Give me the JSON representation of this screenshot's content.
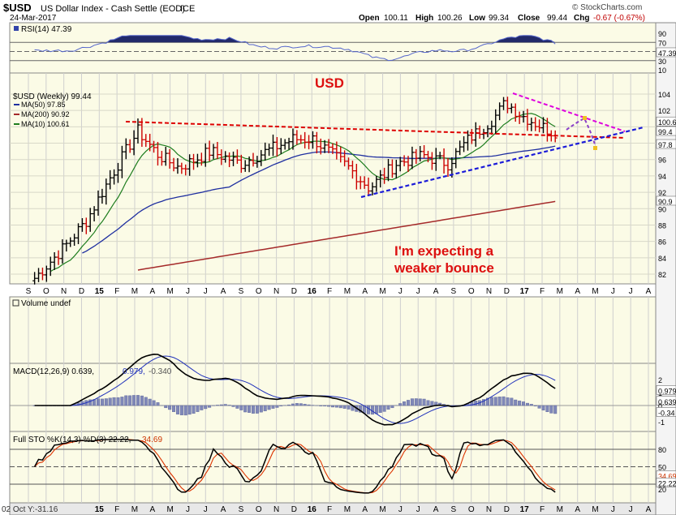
{
  "header": {
    "symbol": "$USD",
    "name": "US Dollar Index - Cash Settle (EOD)",
    "exchange": "ICE",
    "date": "24-Mar-2017",
    "brand": "© StockCharts.com",
    "ohlc": {
      "open_label": "Open",
      "open": "100.11",
      "high_label": "High",
      "high": "100.26",
      "low_label": "Low",
      "low": "99.34",
      "close_label": "Close",
      "close": "99.44",
      "chg_label": "Chg",
      "chg": "-0.67 (-0.67%)"
    }
  },
  "rsi_panel": {
    "legend": "RSI(14) 47.39",
    "ticks": [
      "90",
      "70",
      "47.39",
      "30",
      "10"
    ],
    "ref_levels": [
      70,
      30
    ],
    "current": 47.39
  },
  "price_panel": {
    "legend": "$USD (Weekly) 99.44",
    "ma50_legend": "MA(50) 97.85",
    "ma200_legend": "MA(200) 90.92",
    "ma10_legend": "MA(10) 100.61",
    "ticks": [
      "104",
      "102",
      "100",
      "98",
      "96",
      "94",
      "92",
      "90",
      "88",
      "86",
      "84",
      "82"
    ],
    "last_labels": [
      "100.6",
      "99.4",
      "97.8",
      "90.9"
    ],
    "annotation_title": "USD",
    "annotation_line1": "I'm expecting a",
    "annotation_line2": "weaker bounce",
    "colors": {
      "up": "#000000",
      "down": "#cc0000",
      "ma50": "#1f2fa0",
      "ma200": "#a52a2a",
      "ma10": "#1e7d1e",
      "trend_red": "#dd0000",
      "trend_blue": "#1c1cd8",
      "trend_magenta": "#dd00dd",
      "projection": "#8a3fc8",
      "marker": "#f0c020"
    }
  },
  "x_axis": {
    "labels": [
      "S",
      "O",
      "N",
      "D",
      "15",
      "F",
      "M",
      "A",
      "M",
      "J",
      "J",
      "A",
      "S",
      "O",
      "N",
      "D",
      "16",
      "F",
      "M",
      "A",
      "M",
      "J",
      "J",
      "A",
      "S",
      "O",
      "N",
      "D",
      "17",
      "F",
      "M",
      "A",
      "M",
      "J",
      "J",
      "A"
    ],
    "bottom_labels": [
      "15",
      "F",
      "M",
      "A",
      "M",
      "J",
      "J",
      "A",
      "S",
      "O",
      "N",
      "D",
      "16",
      "F",
      "M",
      "A",
      "M",
      "J",
      "J",
      "A",
      "S",
      "O",
      "N",
      "D",
      "17",
      "F",
      "M",
      "A",
      "M",
      "J",
      "J",
      "A"
    ]
  },
  "volume_panel": {
    "legend": "Volume undef"
  },
  "macd_panel": {
    "legend_main": "MACD(12,26,9) 0.639,",
    "legend_signal": "0.979,",
    "legend_hist": "-0.340",
    "ticks": [
      "2",
      "1",
      "0.979",
      "0.639",
      "0",
      "-0.34",
      "-1"
    ]
  },
  "sto_panel": {
    "legend_main": "Full STO %K(14,3) %D(3) 22.22,",
    "legend_d": "34.69",
    "ticks": [
      "80",
      "50",
      "34.69",
      "22.22",
      "20"
    ],
    "ref_levels": [
      80,
      50,
      20
    ]
  },
  "footer": {
    "note": "02 Oct Y:-31.16"
  },
  "chart_data": {
    "type": "line",
    "title": "$USD US Dollar Index - Cash Settle (EOD) ICE",
    "timeframe": "Weekly",
    "date_range": [
      "Sep 2014",
      "Mar 2017"
    ],
    "ylim": [
      81,
      105
    ],
    "series": [
      {
        "name": "$USD (Weekly)",
        "sampled_closes": [
          [
            2014.7,
            81.5
          ],
          [
            2014.85,
            85.5
          ],
          [
            2014.95,
            88.5
          ],
          [
            2015.07,
            94.0
          ],
          [
            2015.2,
            99.5
          ],
          [
            2015.3,
            96.5
          ],
          [
            2015.4,
            95.0
          ],
          [
            2015.55,
            97.0
          ],
          [
            2015.7,
            95.5
          ],
          [
            2015.82,
            97.0
          ],
          [
            2015.95,
            98.5
          ],
          [
            2016.05,
            98.5
          ],
          [
            2016.12,
            97.0
          ],
          [
            2016.22,
            95.0
          ],
          [
            2016.32,
            92.5
          ],
          [
            2016.45,
            95.5
          ],
          [
            2016.58,
            96.5
          ],
          [
            2016.7,
            95.5
          ],
          [
            2016.8,
            98.5
          ],
          [
            2016.92,
            101.0
          ],
          [
            2016.98,
            103.0
          ],
          [
            2017.05,
            101.5
          ],
          [
            2017.12,
            100.5
          ],
          [
            2017.2,
            99.44
          ]
        ],
        "last": 99.44
      },
      {
        "name": "MA(50)",
        "last": 97.85
      },
      {
        "name": "MA(200)",
        "last": 90.92
      },
      {
        "name": "MA(10)",
        "last": 100.61
      }
    ],
    "indicators": {
      "RSI(14)": 47.39,
      "MACD(12,26,9)": {
        "macd": 0.639,
        "signal": 0.979,
        "histogram": -0.34
      },
      "Full STO %K(14,3) %D(3)": {
        "k": 22.22,
        "d": 34.69
      }
    }
  }
}
